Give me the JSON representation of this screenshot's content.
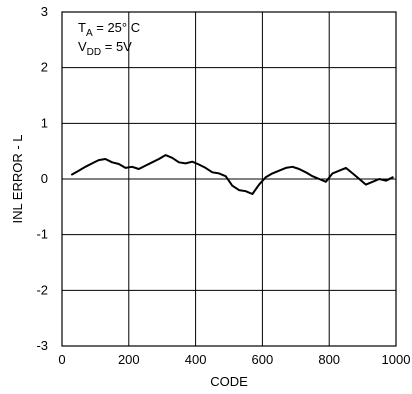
{
  "chart_data": {
    "type": "line",
    "xlabel": "CODE",
    "ylabel": "INL ERROR - L",
    "xlim": [
      0,
      1000
    ],
    "ylim": [
      -3,
      3
    ],
    "x_ticks": [
      0,
      200,
      400,
      600,
      800,
      1000
    ],
    "y_ticks": [
      3,
      2,
      1,
      0,
      -1,
      -2,
      -3
    ],
    "grid": true,
    "conditions": {
      "line1": {
        "main": "T",
        "sub": "A",
        "rest": " = 25° C"
      },
      "line2": {
        "main": "V",
        "sub": "DD",
        "rest": " = 5V"
      }
    },
    "colors": {
      "line": "#000000",
      "grid": "#000000",
      "background": "#ffffff"
    },
    "series": [
      {
        "x": [
          30,
          50,
          70,
          90,
          110,
          130,
          150,
          170,
          190,
          210,
          230,
          250,
          270,
          290,
          310,
          330,
          350,
          370,
          390,
          410,
          430,
          450,
          470,
          490,
          510,
          530,
          550,
          570,
          590,
          610,
          630,
          650,
          670,
          690,
          710,
          730,
          750,
          770,
          790,
          810,
          830,
          850,
          870,
          890,
          910,
          930,
          950,
          970,
          990
        ],
        "y": [
          0.08,
          0.15,
          0.22,
          0.28,
          0.34,
          0.36,
          0.3,
          0.27,
          0.2,
          0.22,
          0.18,
          0.24,
          0.3,
          0.36,
          0.43,
          0.38,
          0.3,
          0.28,
          0.31,
          0.26,
          0.2,
          0.12,
          0.1,
          0.05,
          -0.12,
          -0.2,
          -0.22,
          -0.27,
          -0.1,
          0.03,
          0.1,
          0.15,
          0.2,
          0.22,
          0.18,
          0.12,
          0.05,
          0.0,
          -0.05,
          0.1,
          0.15,
          0.2,
          0.1,
          0.0,
          -0.1,
          -0.05,
          0.0,
          -0.03,
          0.03
        ]
      }
    ]
  }
}
